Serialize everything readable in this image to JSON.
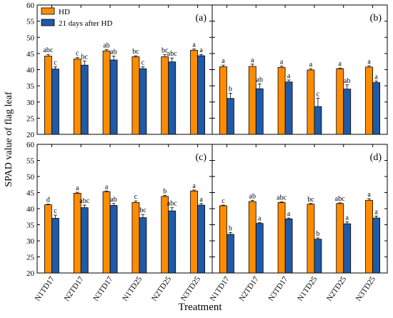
{
  "figure": {
    "ylabel": "SPAD value of flag leaf",
    "xlabel": "Treatment",
    "colors": {
      "HD": "#ff8c00",
      "after": "#1f5aa6"
    }
  },
  "chart_data": [
    {
      "type": "bar",
      "panel_label": "(a)",
      "categories": [
        "N1TD17",
        "N2TD17",
        "N3TD17",
        "N1TD25",
        "N2TD25",
        "N3TD25"
      ],
      "ylim": [
        20,
        60
      ],
      "yticks": [
        20,
        25,
        30,
        35,
        40,
        45,
        50,
        55,
        60
      ],
      "legend": {
        "placement": "top-left",
        "entries": [
          "HD",
          "21 days after HD"
        ]
      },
      "series": [
        {
          "name": "HD",
          "values": [
            44.2,
            43.3,
            45.8,
            44.0,
            44.0,
            46.0
          ],
          "errors": [
            0.5,
            0.5,
            0.4,
            0.3,
            0.6,
            0.4
          ],
          "letters": [
            "abc",
            "c",
            "ab",
            "bc",
            "bc",
            "a"
          ]
        },
        {
          "name": "21 days after HD",
          "values": [
            40.2,
            41.4,
            43.0,
            40.3,
            42.4,
            44.3
          ],
          "errors": [
            0.7,
            1.3,
            1.2,
            0.6,
            1.2,
            0.4
          ],
          "letters": [
            "c",
            "bc",
            "ab",
            "c",
            "abc",
            "a"
          ]
        }
      ]
    },
    {
      "type": "bar",
      "panel_label": "(b)",
      "categories": [
        "N1TD17",
        "N2TD17",
        "N3TD17",
        "N1TD25",
        "N2TD25",
        "N3TD25"
      ],
      "ylim": [
        20,
        60
      ],
      "series": [
        {
          "name": "HD",
          "values": [
            40.9,
            41.0,
            40.7,
            39.9,
            40.3,
            40.8
          ],
          "errors": [
            0.5,
            0.7,
            0.4,
            0.4,
            0.2,
            0.4
          ],
          "letters": [
            "a",
            "a",
            "a",
            "a",
            "a",
            "a"
          ]
        },
        {
          "name": "21 days after HD",
          "values": [
            31.1,
            34.1,
            36.2,
            28.6,
            34.0,
            36.0
          ],
          "errors": [
            1.6,
            1.5,
            0.6,
            2.6,
            1.3,
            0.5
          ],
          "letters": [
            "b",
            "ab",
            "a",
            "c",
            "ab",
            "a"
          ]
        }
      ]
    },
    {
      "type": "bar",
      "panel_label": "(c)",
      "categories": [
        "N1TD17",
        "N2TD17",
        "N3TD17",
        "N1TD25",
        "N2TD25",
        "N3TD25"
      ],
      "ylim": [
        20,
        60
      ],
      "yticks": [
        20,
        25,
        30,
        35,
        40,
        45,
        50,
        55,
        60
      ],
      "series": [
        {
          "name": "HD",
          "values": [
            41.2,
            44.8,
            45.3,
            41.9,
            43.8,
            45.5
          ],
          "errors": [
            0.2,
            0.3,
            0.2,
            0.5,
            0.3,
            0.3
          ],
          "letters": [
            "d",
            "a",
            "a",
            "c",
            "b",
            "a"
          ]
        },
        {
          "name": "21 days after HD",
          "values": [
            37.0,
            40.3,
            41.0,
            37.2,
            39.3,
            41.1
          ],
          "errors": [
            1.0,
            0.8,
            0.6,
            1.0,
            1.0,
            0.5
          ],
          "letters": [
            "c",
            "abc",
            "ab",
            "bc",
            "abc",
            "a"
          ]
        }
      ]
    },
    {
      "type": "bar",
      "panel_label": "(d)",
      "categories": [
        "N1TD17",
        "N2TD17",
        "N3TD17",
        "N1TD25",
        "N2TD25",
        "N3TD25"
      ],
      "ylim": [
        20,
        60
      ],
      "series": [
        {
          "name": "HD",
          "values": [
            40.9,
            42.2,
            41.9,
            41.4,
            41.6,
            42.6
          ],
          "errors": [
            0.2,
            0.4,
            0.2,
            0.2,
            0.2,
            0.5
          ],
          "letters": [
            "c",
            "ab",
            "abc",
            "bc",
            "abc",
            "a"
          ]
        },
        {
          "name": "21 days after HD",
          "values": [
            32.0,
            35.4,
            36.8,
            30.5,
            35.3,
            37.1
          ],
          "errors": [
            0.6,
            0.3,
            0.3,
            0.4,
            0.6,
            0.6
          ],
          "letters": [
            "b",
            "a",
            "a",
            "b",
            "a",
            "a"
          ]
        }
      ]
    }
  ]
}
